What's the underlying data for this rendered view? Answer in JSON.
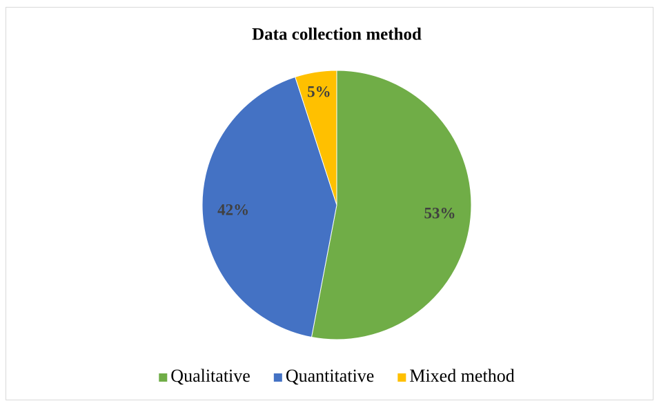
{
  "chart_data": {
    "type": "pie",
    "title": "Data collection method",
    "categories": [
      "Qualitative",
      "Quantitative",
      "Mixed method"
    ],
    "values": [
      53,
      42,
      5
    ],
    "value_labels": [
      "53%",
      "42%",
      "5%"
    ],
    "colors": [
      "#70ad47",
      "#4472c4",
      "#ffc000"
    ],
    "legend": "bottom"
  }
}
